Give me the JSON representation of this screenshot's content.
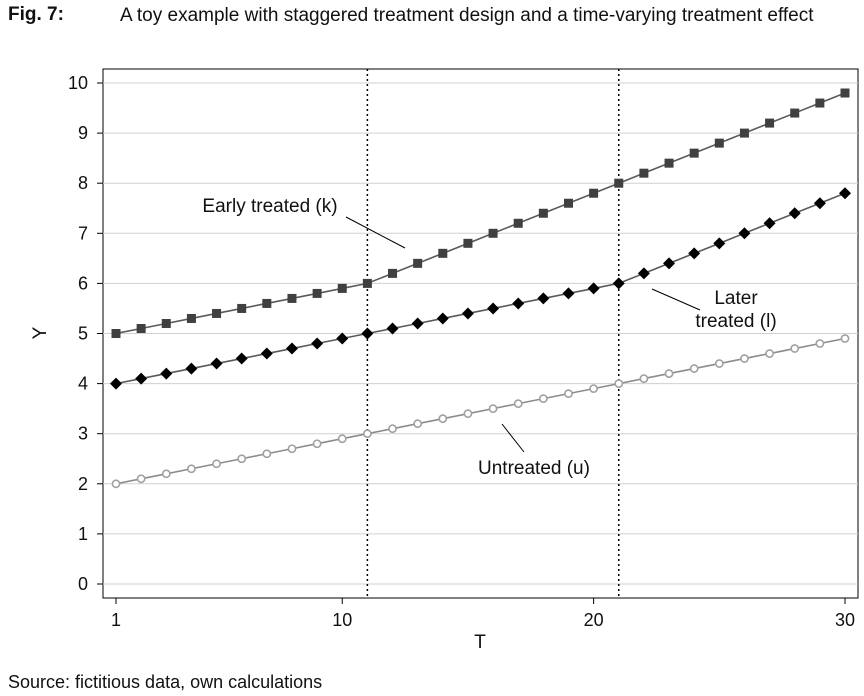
{
  "figure": {
    "label": "Fig. 7:",
    "title": "A toy example with staggered treatment design and a time-varying treatment effect",
    "source": "Source: fictitious data, own calculations"
  },
  "chart_data": {
    "type": "line",
    "xlabel": "T",
    "ylabel": "Y",
    "xlim": [
      1,
      30
    ],
    "ylim": [
      0,
      10
    ],
    "xticks": [
      1,
      10,
      20,
      30
    ],
    "yticks": [
      0,
      1,
      2,
      3,
      4,
      5,
      6,
      7,
      8,
      9,
      10
    ],
    "grid": "horizontal",
    "vlines": [
      11,
      21
    ],
    "x": [
      1,
      2,
      3,
      4,
      5,
      6,
      7,
      8,
      9,
      10,
      11,
      12,
      13,
      14,
      15,
      16,
      17,
      18,
      19,
      20,
      21,
      22,
      23,
      24,
      25,
      26,
      27,
      28,
      29,
      30
    ],
    "series": [
      {
        "name": "Early treated (k)",
        "marker": "square",
        "color": "#404040",
        "values": [
          5.0,
          5.1,
          5.2,
          5.3,
          5.4,
          5.5,
          5.6,
          5.7,
          5.8,
          5.9,
          6.0,
          6.2,
          6.4,
          6.6,
          6.8,
          7.0,
          7.2,
          7.4,
          7.6,
          7.8,
          8.0,
          8.2,
          8.4,
          8.6,
          8.8,
          9.0,
          9.2,
          9.4,
          9.6,
          9.8
        ]
      },
      {
        "name": "Later treated (l)",
        "marker": "diamond",
        "color": "#000000",
        "values": [
          4.0,
          4.1,
          4.2,
          4.3,
          4.4,
          4.5,
          4.6,
          4.7,
          4.8,
          4.9,
          5.0,
          5.1,
          5.2,
          5.3,
          5.4,
          5.5,
          5.6,
          5.7,
          5.8,
          5.9,
          6.0,
          6.2,
          6.4,
          6.6,
          6.8,
          7.0,
          7.2,
          7.4,
          7.6,
          7.8
        ]
      },
      {
        "name": "Untreated (u)",
        "marker": "circle-open",
        "color": "#a0a0a0",
        "values": [
          2.0,
          2.1,
          2.2,
          2.3,
          2.4,
          2.5,
          2.6,
          2.7,
          2.8,
          2.9,
          3.0,
          3.1,
          3.2,
          3.3,
          3.4,
          3.5,
          3.6,
          3.7,
          3.8,
          3.9,
          4.0,
          4.1,
          4.2,
          4.3,
          4.4,
          4.5,
          4.6,
          4.7,
          4.8,
          4.9
        ]
      }
    ],
    "annotations": [
      {
        "lines": [
          "Early treated (k)"
        ],
        "series": 0
      },
      {
        "lines": [
          "Later",
          "treated (l)"
        ],
        "series": 1
      },
      {
        "lines": [
          "Untreated (u)"
        ],
        "series": 2
      }
    ]
  }
}
